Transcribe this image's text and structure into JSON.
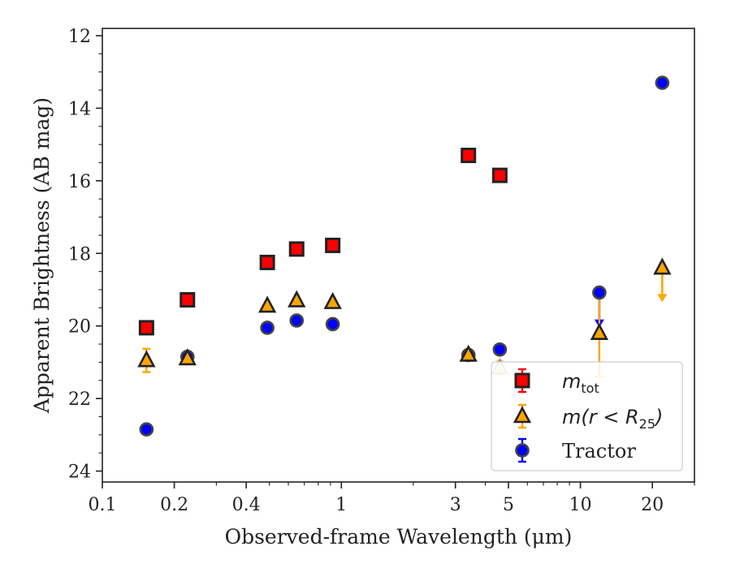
{
  "chart_data": {
    "type": "scatter",
    "xlabel": "Observed-frame Wavelength (μm)",
    "ylabel": "Apparent Brightness (AB mag)",
    "xscale": "log",
    "xlim": [
      0.1,
      30
    ],
    "ylim": [
      24.3,
      11.8
    ],
    "y_inverted": true,
    "x_ticks": [
      0.1,
      0.2,
      0.4,
      1,
      3,
      5,
      10,
      20
    ],
    "x_tick_labels": [
      "0.1",
      "0.2",
      "0.4",
      "1",
      "3",
      "5",
      "10",
      "20"
    ],
    "y_ticks": [
      12,
      14,
      16,
      18,
      20,
      22,
      24
    ],
    "y_tick_labels": [
      "12",
      "14",
      "16",
      "18",
      "20",
      "22",
      "24"
    ],
    "grid": false,
    "legend_position": "bottom-right",
    "series": [
      {
        "name": "m_tot",
        "legend_main": "m",
        "legend_sub": "tot",
        "marker": "square",
        "color": "#ff0000",
        "edge_color": "#222222",
        "points": [
          {
            "x": 0.153,
            "y": 20.05,
            "err": 0.05
          },
          {
            "x": 0.227,
            "y": 19.28,
            "err": 0.05
          },
          {
            "x": 0.49,
            "y": 18.25,
            "err": 0.05
          },
          {
            "x": 0.65,
            "y": 17.88,
            "err": 0.05
          },
          {
            "x": 0.92,
            "y": 17.78,
            "err": 0.05
          },
          {
            "x": 3.4,
            "y": 15.3,
            "err": 0.05
          },
          {
            "x": 4.6,
            "y": 15.85,
            "err": 0.05
          }
        ]
      },
      {
        "name": "m(r < R_25)",
        "legend_main": "m(r < R",
        "legend_sub": "25",
        "legend_tail": ")",
        "marker": "triangle",
        "color": "#ffa500",
        "edge_color": "#222222",
        "points": [
          {
            "x": 0.153,
            "y": 20.95,
            "err": 0.32
          },
          {
            "x": 0.227,
            "y": 20.9,
            "err": 0.05
          },
          {
            "x": 0.49,
            "y": 19.45,
            "err": 0.05
          },
          {
            "x": 0.65,
            "y": 19.3,
            "err": 0.05
          },
          {
            "x": 0.92,
            "y": 19.35,
            "err": 0.05
          },
          {
            "x": 3.4,
            "y": 20.8,
            "err": 0.05
          },
          {
            "x": 4.6,
            "y": 21.15,
            "err": 0.2,
            "faded": true
          },
          {
            "x": 12.0,
            "y": 20.2,
            "err": 1.2
          },
          {
            "x": 22.0,
            "y": 18.4,
            "upper_limit_to": 19.3
          }
        ]
      },
      {
        "name": "Tractor",
        "marker": "circle",
        "color": "#0000ff",
        "edge_color": "#444444",
        "points": [
          {
            "x": 0.153,
            "y": 22.85,
            "err": 0.05
          },
          {
            "x": 0.227,
            "y": 20.85,
            "err": 0.05
          },
          {
            "x": 0.49,
            "y": 20.05,
            "err": 0.05
          },
          {
            "x": 0.65,
            "y": 19.85,
            "err": 0.05
          },
          {
            "x": 0.92,
            "y": 19.95,
            "err": 0.05
          },
          {
            "x": 3.4,
            "y": 20.8,
            "err": 0.05
          },
          {
            "x": 4.6,
            "y": 20.65,
            "err": 0.05
          },
          {
            "x": 12.0,
            "y": 19.08,
            "upper_limit_to": 20.0
          },
          {
            "x": 22.0,
            "y": 13.3,
            "err": 0.05
          }
        ]
      }
    ]
  }
}
